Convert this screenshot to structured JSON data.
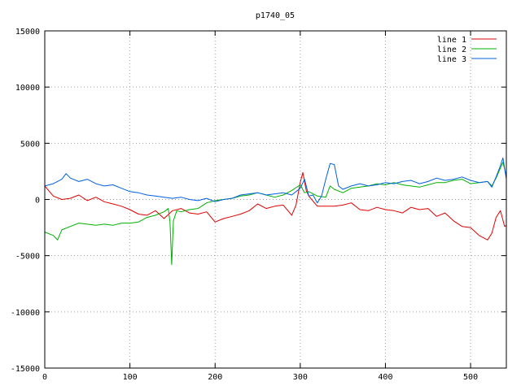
{
  "chart_data": {
    "type": "line",
    "title": "p1740_05",
    "xlabel": "",
    "ylabel": "",
    "xlim": [
      0,
      542
    ],
    "ylim": [
      -15000,
      15000
    ],
    "x_ticks": [
      0,
      100,
      200,
      300,
      400,
      500
    ],
    "y_ticks": [
      -15000,
      -10000,
      -5000,
      0,
      5000,
      10000,
      15000
    ],
    "grid": true,
    "legend_position": "top-right",
    "series": [
      {
        "name": "line 1",
        "color": "#e00000",
        "points": [
          [
            0,
            1200
          ],
          [
            10,
            300
          ],
          [
            20,
            0
          ],
          [
            30,
            100
          ],
          [
            40,
            400
          ],
          [
            50,
            -100
          ],
          [
            60,
            200
          ],
          [
            70,
            -200
          ],
          [
            80,
            -400
          ],
          [
            90,
            -600
          ],
          [
            100,
            -900
          ],
          [
            110,
            -1300
          ],
          [
            120,
            -1400
          ],
          [
            130,
            -1000
          ],
          [
            140,
            -1700
          ],
          [
            150,
            -1000
          ],
          [
            160,
            -800
          ],
          [
            170,
            -1200
          ],
          [
            180,
            -1300
          ],
          [
            190,
            -1100
          ],
          [
            200,
            -2000
          ],
          [
            210,
            -1700
          ],
          [
            220,
            -1500
          ],
          [
            230,
            -1300
          ],
          [
            240,
            -1000
          ],
          [
            250,
            -400
          ],
          [
            260,
            -800
          ],
          [
            270,
            -600
          ],
          [
            280,
            -500
          ],
          [
            290,
            -1400
          ],
          [
            295,
            -500
          ],
          [
            300,
            1500
          ],
          [
            303,
            2400
          ],
          [
            307,
            800
          ],
          [
            310,
            300
          ],
          [
            320,
            -600
          ],
          [
            330,
            -600
          ],
          [
            340,
            -600
          ],
          [
            350,
            -500
          ],
          [
            360,
            -300
          ],
          [
            370,
            -900
          ],
          [
            380,
            -1000
          ],
          [
            390,
            -700
          ],
          [
            400,
            -900
          ],
          [
            410,
            -1000
          ],
          [
            420,
            -1200
          ],
          [
            430,
            -700
          ],
          [
            440,
            -900
          ],
          [
            450,
            -800
          ],
          [
            460,
            -1500
          ],
          [
            470,
            -1200
          ],
          [
            480,
            -1900
          ],
          [
            490,
            -2400
          ],
          [
            500,
            -2500
          ],
          [
            510,
            -3200
          ],
          [
            520,
            -3600
          ],
          [
            525,
            -3000
          ],
          [
            530,
            -1600
          ],
          [
            535,
            -1000
          ],
          [
            540,
            -2400
          ],
          [
            542,
            -2300
          ]
        ]
      },
      {
        "name": "line 2",
        "color": "#00b000",
        "points": [
          [
            0,
            -2900
          ],
          [
            10,
            -3200
          ],
          [
            15,
            -3600
          ],
          [
            20,
            -2700
          ],
          [
            30,
            -2400
          ],
          [
            40,
            -2100
          ],
          [
            50,
            -2200
          ],
          [
            60,
            -2300
          ],
          [
            70,
            -2200
          ],
          [
            80,
            -2300
          ],
          [
            90,
            -2100
          ],
          [
            100,
            -2100
          ],
          [
            110,
            -2000
          ],
          [
            120,
            -1600
          ],
          [
            130,
            -1400
          ],
          [
            140,
            -1100
          ],
          [
            145,
            -800
          ],
          [
            147,
            -2000
          ],
          [
            149,
            -5800
          ],
          [
            151,
            -1900
          ],
          [
            155,
            -1000
          ],
          [
            160,
            -1100
          ],
          [
            170,
            -900
          ],
          [
            180,
            -800
          ],
          [
            190,
            -300
          ],
          [
            200,
            -100
          ],
          [
            210,
            0
          ],
          [
            220,
            100
          ],
          [
            230,
            300
          ],
          [
            240,
            400
          ],
          [
            250,
            600
          ],
          [
            260,
            400
          ],
          [
            270,
            200
          ],
          [
            280,
            400
          ],
          [
            290,
            800
          ],
          [
            300,
            1300
          ],
          [
            305,
            600
          ],
          [
            310,
            700
          ],
          [
            320,
            300
          ],
          [
            330,
            200
          ],
          [
            335,
            1200
          ],
          [
            340,
            900
          ],
          [
            350,
            600
          ],
          [
            360,
            1000
          ],
          [
            370,
            1100
          ],
          [
            380,
            1200
          ],
          [
            390,
            1400
          ],
          [
            400,
            1300
          ],
          [
            410,
            1500
          ],
          [
            420,
            1300
          ],
          [
            430,
            1200
          ],
          [
            440,
            1100
          ],
          [
            450,
            1300
          ],
          [
            460,
            1500
          ],
          [
            470,
            1500
          ],
          [
            480,
            1700
          ],
          [
            490,
            1800
          ],
          [
            500,
            1400
          ],
          [
            510,
            1500
          ],
          [
            520,
            1600
          ],
          [
            525,
            1200
          ],
          [
            530,
            1900
          ],
          [
            535,
            2800
          ],
          [
            538,
            3300
          ],
          [
            542,
            2100
          ]
        ]
      },
      {
        "name": "line 3",
        "color": "#0060e0",
        "points": [
          [
            0,
            1200
          ],
          [
            10,
            1400
          ],
          [
            20,
            1800
          ],
          [
            25,
            2300
          ],
          [
            30,
            1900
          ],
          [
            40,
            1600
          ],
          [
            50,
            1800
          ],
          [
            60,
            1400
          ],
          [
            70,
            1200
          ],
          [
            80,
            1300
          ],
          [
            90,
            1000
          ],
          [
            100,
            700
          ],
          [
            110,
            600
          ],
          [
            120,
            400
          ],
          [
            130,
            300
          ],
          [
            140,
            200
          ],
          [
            150,
            100
          ],
          [
            160,
            200
          ],
          [
            170,
            0
          ],
          [
            180,
            -100
          ],
          [
            190,
            100
          ],
          [
            200,
            -200
          ],
          [
            210,
            0
          ],
          [
            220,
            100
          ],
          [
            230,
            400
          ],
          [
            240,
            500
          ],
          [
            250,
            600
          ],
          [
            260,
            400
          ],
          [
            270,
            500
          ],
          [
            280,
            600
          ],
          [
            290,
            400
          ],
          [
            300,
            1000
          ],
          [
            305,
            1800
          ],
          [
            310,
            300
          ],
          [
            315,
            400
          ],
          [
            320,
            -300
          ],
          [
            325,
            300
          ],
          [
            330,
            1800
          ],
          [
            335,
            3200
          ],
          [
            340,
            3100
          ],
          [
            345,
            1200
          ],
          [
            350,
            900
          ],
          [
            360,
            1200
          ],
          [
            370,
            1400
          ],
          [
            380,
            1200
          ],
          [
            390,
            1300
          ],
          [
            400,
            1500
          ],
          [
            410,
            1400
          ],
          [
            420,
            1600
          ],
          [
            430,
            1700
          ],
          [
            440,
            1400
          ],
          [
            450,
            1600
          ],
          [
            460,
            1900
          ],
          [
            470,
            1700
          ],
          [
            480,
            1800
          ],
          [
            490,
            2000
          ],
          [
            500,
            1700
          ],
          [
            510,
            1500
          ],
          [
            520,
            1600
          ],
          [
            525,
            1100
          ],
          [
            530,
            2000
          ],
          [
            535,
            3000
          ],
          [
            538,
            3700
          ],
          [
            542,
            1800
          ]
        ]
      }
    ]
  }
}
